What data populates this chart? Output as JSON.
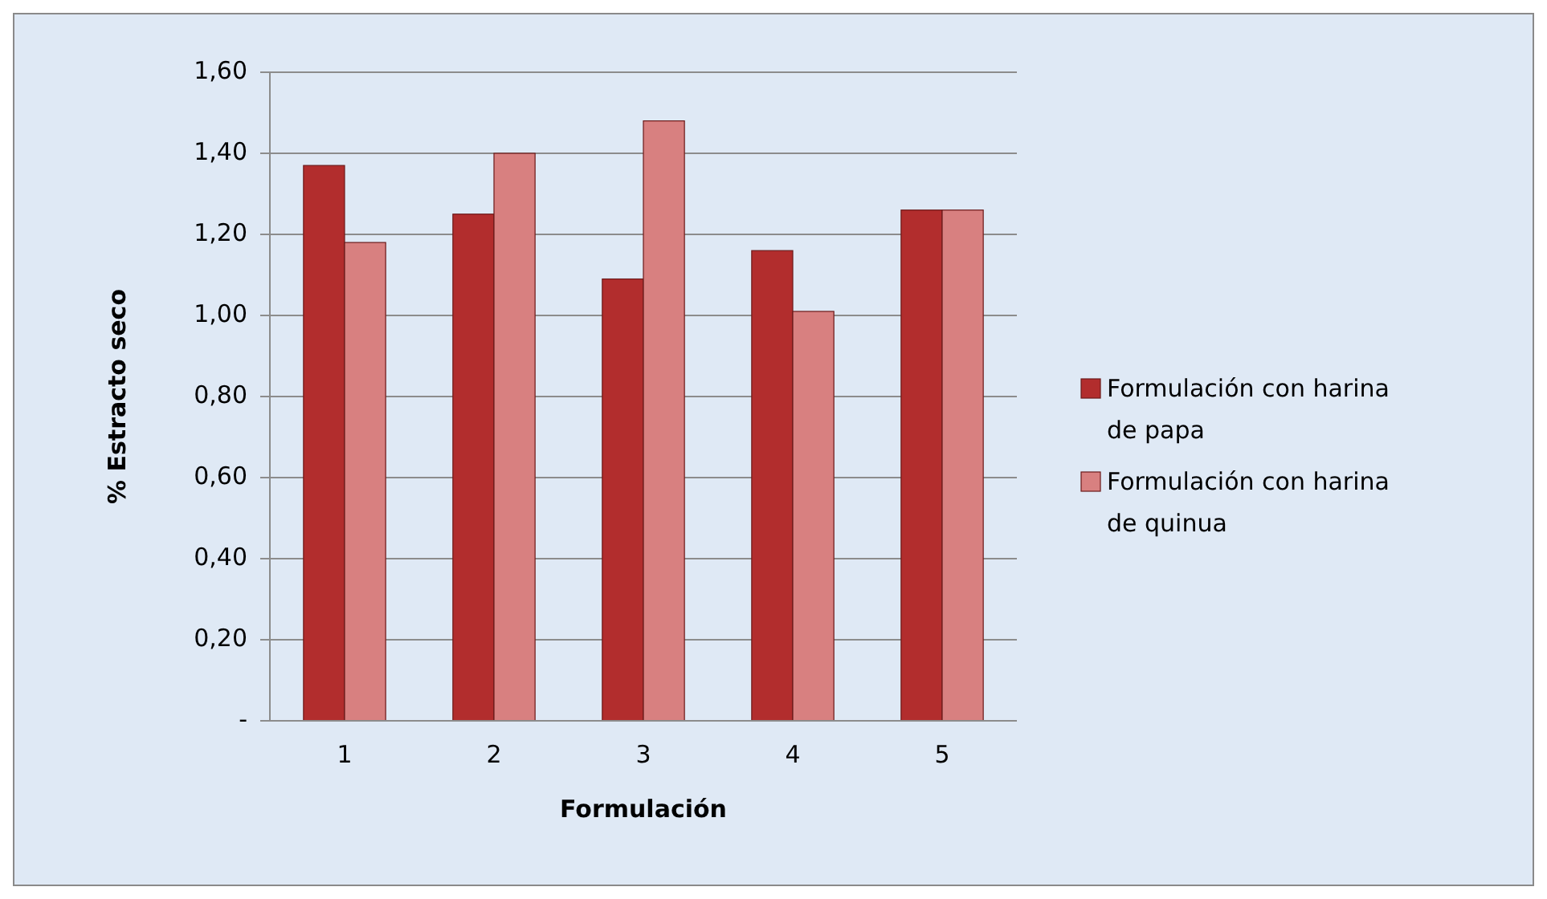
{
  "chart_data": {
    "type": "bar",
    "xlabel": "Formulación",
    "ylabel": "% Estracto seco",
    "categories": [
      "1",
      "2",
      "3",
      "4",
      "5"
    ],
    "series": [
      {
        "name": "Formulación con harina de papa",
        "color": "#b22d2d",
        "values": [
          1.37,
          1.25,
          1.09,
          1.16,
          1.26
        ]
      },
      {
        "name": "Formulación con harina de quinua",
        "color": "#d88080",
        "values": [
          1.18,
          1.4,
          1.48,
          1.01,
          1.26
        ]
      }
    ],
    "ylim": [
      0,
      1.6
    ],
    "yticks": [
      {
        "value": 0,
        "label": "-"
      },
      {
        "value": 0.2,
        "label": "0,20"
      },
      {
        "value": 0.4,
        "label": "0,40"
      },
      {
        "value": 0.6,
        "label": "0,60"
      },
      {
        "value": 0.8,
        "label": "0,80"
      },
      {
        "value": 1,
        "label": "1,00"
      },
      {
        "value": 1.2,
        "label": "1,20"
      },
      {
        "value": 1.4,
        "label": "1,40"
      },
      {
        "value": 1.6,
        "label": "1,60"
      }
    ],
    "grid": "y",
    "legend": "right"
  }
}
